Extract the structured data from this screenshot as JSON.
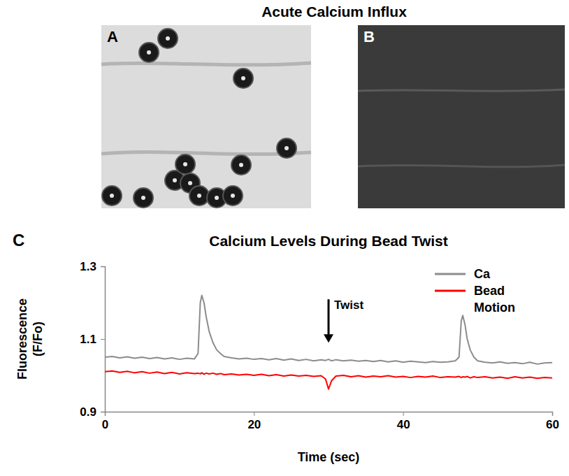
{
  "header": {
    "title": "Acute Calcium Influx",
    "panels": [
      "A",
      "B"
    ],
    "chart_label": "C"
  },
  "chart_data": {
    "type": "line",
    "title": "Calcium Levels During Bead Twist",
    "x_label": "Time (sec)",
    "y_label": "Fluorescence (F/Fo)",
    "x": [
      0,
      1,
      2,
      3,
      4,
      5,
      6,
      7,
      8,
      9,
      10,
      11,
      12,
      12.5,
      12.8,
      13,
      13.3,
      13.6,
      14,
      14.5,
      15,
      15.5,
      16,
      17,
      18,
      19,
      20,
      21,
      22,
      23,
      24,
      25,
      26,
      27,
      28,
      29,
      29.6,
      30,
      30.4,
      31,
      32,
      33,
      34,
      35,
      36,
      37,
      38,
      39,
      40,
      41,
      42,
      43,
      44,
      45,
      46,
      47,
      47.5,
      47.8,
      48,
      48.3,
      48.6,
      49,
      49.5,
      50,
      51,
      52,
      53,
      54,
      55,
      56,
      57,
      58,
      59,
      60
    ],
    "series": [
      {
        "name": "Ca",
        "color": "#8c8c8c",
        "values": [
          1.05,
          1.052,
          1.048,
          1.051,
          1.047,
          1.05,
          1.046,
          1.049,
          1.045,
          1.048,
          1.044,
          1.047,
          1.045,
          1.06,
          1.2,
          1.22,
          1.2,
          1.16,
          1.12,
          1.09,
          1.07,
          1.06,
          1.052,
          1.048,
          1.045,
          1.047,
          1.044,
          1.046,
          1.043,
          1.046,
          1.042,
          1.045,
          1.041,
          1.044,
          1.04,
          1.043,
          1.041,
          1.044,
          1.04,
          1.043,
          1.04,
          1.042,
          1.039,
          1.041,
          1.038,
          1.041,
          1.037,
          1.04,
          1.036,
          1.039,
          1.037,
          1.035,
          1.038,
          1.036,
          1.037,
          1.04,
          1.05,
          1.15,
          1.165,
          1.14,
          1.1,
          1.07,
          1.05,
          1.04,
          1.036,
          1.034,
          1.037,
          1.033,
          1.035,
          1.032,
          1.036,
          1.031,
          1.034,
          1.035
        ]
      },
      {
        "name": "Bead Motion",
        "color": "#ff0000",
        "values": [
          1.01,
          1.012,
          1.008,
          1.011,
          1.007,
          1.01,
          1.006,
          1.009,
          1.005,
          1.008,
          1.004,
          1.007,
          1.005,
          1.006,
          1.004,
          1.007,
          1.003,
          1.006,
          1.004,
          1.006,
          1.003,
          1.005,
          1.002,
          1.004,
          1.001,
          1.003,
          1.0,
          1.003,
          0.999,
          1.002,
          0.998,
          1.001,
          0.998,
          1.0,
          0.997,
          0.999,
          0.99,
          0.962,
          0.985,
          0.998,
          1.0,
          0.996,
          0.999,
          0.995,
          0.998,
          0.996,
          0.999,
          0.995,
          0.997,
          0.994,
          0.997,
          0.995,
          0.998,
          0.994,
          0.996,
          0.995,
          0.997,
          0.994,
          0.996,
          0.995,
          0.997,
          0.993,
          0.996,
          0.994,
          0.996,
          0.993,
          0.995,
          0.992,
          0.996,
          0.993,
          0.995,
          0.992,
          0.994,
          0.993
        ]
      }
    ],
    "annotations": [
      {
        "text": "Twist",
        "x": 30,
        "y": 1.09
      }
    ],
    "xlim": [
      0,
      60
    ],
    "xticks": [
      0,
      20,
      40,
      60
    ],
    "ylim": [
      0.9,
      1.3
    ],
    "yticks": [
      0.9,
      1.1,
      1.3
    ],
    "legend": "upper right",
    "grid": false
  }
}
